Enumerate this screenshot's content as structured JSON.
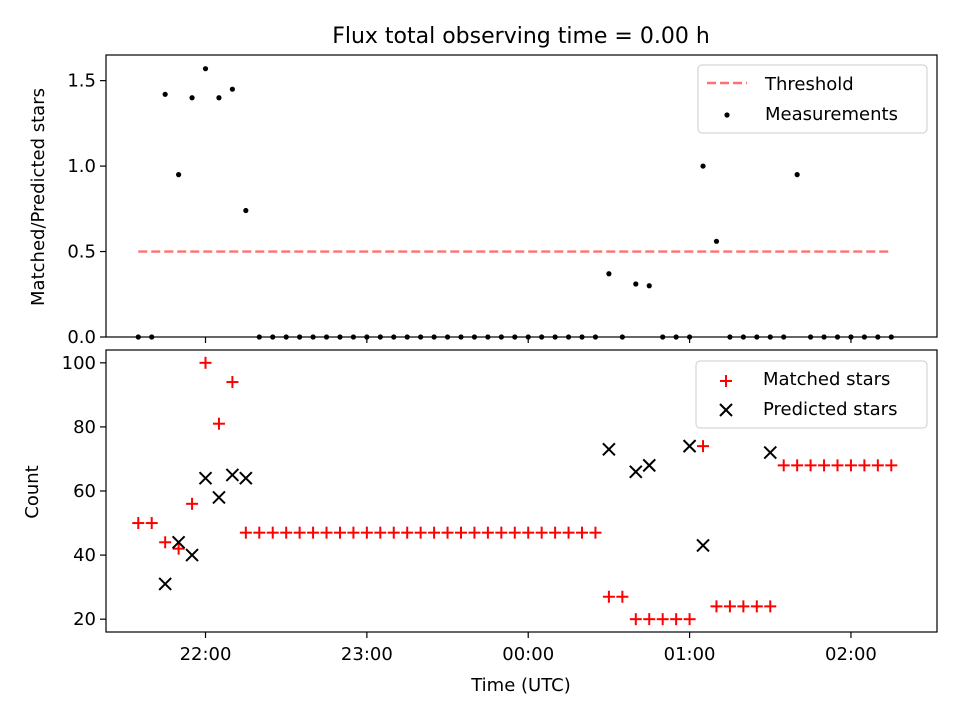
{
  "title": "Flux total observing time = 0.00 h",
  "xlabel": "Time (UTC)",
  "x_tick_labels": [
    "22:00",
    "23:00",
    "00:00",
    "01:00",
    "02:00"
  ],
  "colors": {
    "threshold": "#ff7070",
    "measurements": "#000000",
    "matched": "#ff0000",
    "predicted": "#000000"
  },
  "chart_data": [
    {
      "type": "scatter",
      "ylabel": "Matched/Predicted stars",
      "ylim": [
        0,
        1.65
      ],
      "yticks": [
        "0.0",
        "0.5",
        "1.0",
        "1.5"
      ],
      "x_range": [
        "21:23",
        "02:32"
      ],
      "legend_position": "top-right",
      "threshold": {
        "name": "Threshold",
        "value": 0.5,
        "x_start": "21:35",
        "x_end": "02:15"
      },
      "series": [
        {
          "name": "Measurements",
          "marker": "dot",
          "x": [
            "21:35",
            "21:40",
            "21:45",
            "21:50",
            "21:55",
            "22:00",
            "22:05",
            "22:10",
            "22:15",
            "22:20",
            "22:25",
            "22:30",
            "22:35",
            "22:40",
            "22:45",
            "22:50",
            "22:55",
            "23:00",
            "23:05",
            "23:10",
            "23:15",
            "23:20",
            "23:25",
            "23:30",
            "23:35",
            "23:40",
            "23:45",
            "23:50",
            "23:55",
            "00:00",
            "00:05",
            "00:10",
            "00:15",
            "00:20",
            "00:25",
            "00:30",
            "00:35",
            "00:40",
            "00:45",
            "00:50",
            "00:55",
            "01:00",
            "01:05",
            "01:10",
            "01:15",
            "01:20",
            "01:25",
            "01:30",
            "01:35",
            "01:40",
            "01:45",
            "01:50",
            "01:55",
            "02:00",
            "02:05",
            "02:10",
            "02:15"
          ],
          "y": [
            0,
            0,
            1.42,
            0.95,
            1.4,
            1.57,
            1.4,
            1.45,
            0.74,
            0,
            0,
            0,
            0,
            0,
            0,
            0,
            0,
            0,
            0,
            0,
            0,
            0,
            0,
            0,
            0,
            0,
            0,
            0,
            0,
            0,
            0,
            0,
            0,
            0,
            0,
            0.37,
            0,
            0.31,
            0.3,
            0,
            0,
            0,
            1.0,
            0.56,
            0,
            0,
            0,
            0,
            0,
            0.95,
            0,
            0,
            0,
            0,
            0,
            0,
            0
          ]
        }
      ]
    },
    {
      "type": "scatter",
      "ylabel": "Count",
      "ylim": [
        16,
        104
      ],
      "yticks": [
        "20",
        "40",
        "60",
        "80",
        "100"
      ],
      "legend_position": "top-right",
      "series": [
        {
          "name": "Matched stars",
          "marker": "plus",
          "x": [
            "21:35",
            "21:40",
            "21:45",
            "21:50",
            "21:55",
            "22:00",
            "22:05",
            "22:10",
            "22:15",
            "22:20",
            "22:25",
            "22:30",
            "22:35",
            "22:40",
            "22:45",
            "22:50",
            "22:55",
            "23:00",
            "23:05",
            "23:10",
            "23:15",
            "23:20",
            "23:25",
            "23:30",
            "23:35",
            "23:40",
            "23:45",
            "23:50",
            "23:55",
            "00:00",
            "00:05",
            "00:10",
            "00:15",
            "00:20",
            "00:25",
            "00:30",
            "00:35",
            "00:40",
            "00:45",
            "00:50",
            "00:55",
            "01:00",
            "01:05",
            "01:10",
            "01:15",
            "01:20",
            "01:25",
            "01:30",
            "01:35",
            "01:40",
            "01:45",
            "01:50",
            "01:55",
            "02:00",
            "02:05",
            "02:10",
            "02:15"
          ],
          "y": [
            50,
            50,
            44,
            42,
            56,
            100,
            81,
            94,
            47,
            47,
            47,
            47,
            47,
            47,
            47,
            47,
            47,
            47,
            47,
            47,
            47,
            47,
            47,
            47,
            47,
            47,
            47,
            47,
            47,
            47,
            47,
            47,
            47,
            47,
            47,
            27,
            27,
            20,
            20,
            20,
            20,
            20,
            74,
            24,
            24,
            24,
            24,
            24,
            68,
            68,
            68,
            68,
            68,
            68,
            68,
            68,
            68
          ]
        },
        {
          "name": "Predicted stars",
          "marker": "x",
          "x": [
            "21:45",
            "21:50",
            "21:55",
            "22:00",
            "22:05",
            "22:10",
            "22:15",
            "00:30",
            "00:40",
            "00:45",
            "01:00",
            "01:05",
            "01:30"
          ],
          "y": [
            31,
            44,
            40,
            64,
            58,
            65,
            64,
            73,
            66,
            68,
            74,
            43,
            72
          ]
        }
      ]
    }
  ]
}
